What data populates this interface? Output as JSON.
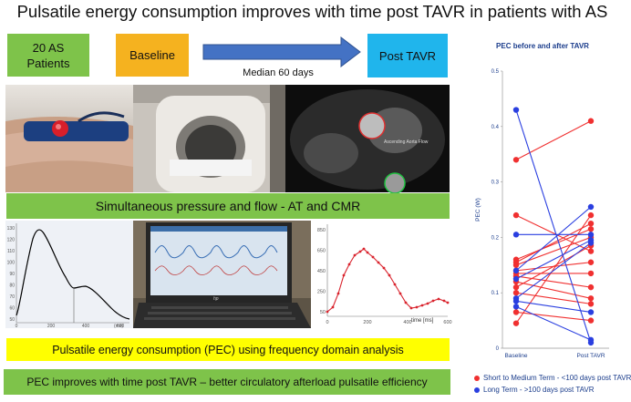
{
  "title": "Pulsatile energy consumption improves with time post TAVR in patients with AS",
  "flow": {
    "patients": "20 AS\nPatients",
    "baseline": "Baseline",
    "median": "Median 60 days",
    "post": "Post TAVR"
  },
  "mri_label": "Ascending Aorta Flow",
  "banner1": "Simultaneous pressure and flow  - AT and CMR",
  "banner2": "Pulsatile energy consumption (PEC) using frequency domain analysis",
  "banner3": "PEC improves with time post TAVR – better circulatory afterload pulsatile efficiency",
  "laptop_brand": "hp",
  "pressure_chart": {
    "y_ticks": [
      "130",
      "120",
      "110",
      "100",
      "90",
      "80",
      "70",
      "60",
      "50"
    ],
    "x_ticks": [
      "0",
      "200",
      "400",
      "600"
    ],
    "x_unit": "(ms)"
  },
  "flow_chart": {
    "y_ticks": [
      "850",
      "650",
      "450",
      "250",
      "50"
    ],
    "x_ticks": [
      "0",
      "200",
      "400",
      "600"
    ],
    "xlabel": "time [ms]"
  },
  "chart_data": {
    "type": "line",
    "title": "PEC before and after TAVR",
    "ylabel": "PEC (W)",
    "categories": [
      "Baseline",
      "Post TAVR"
    ],
    "ylim": [
      0,
      0.5
    ],
    "y_ticks": [
      "0",
      "0.1",
      "0.2",
      "0.3",
      "0.4",
      "0.5"
    ],
    "legend": [
      {
        "label": "Short to Medium Term - <100 days post TAVR",
        "color": "#f03030"
      },
      {
        "label": "Long Term - >100 days post TAVR",
        "color": "#2a3fe0"
      }
    ],
    "series": [
      {
        "group": "short",
        "values": [
          0.34,
          0.41
        ]
      },
      {
        "group": "short",
        "values": [
          0.24,
          0.175
        ]
      },
      {
        "group": "short",
        "values": [
          0.16,
          0.215
        ]
      },
      {
        "group": "short",
        "values": [
          0.155,
          0.225
        ]
      },
      {
        "group": "short",
        "values": [
          0.15,
          0.2
        ]
      },
      {
        "group": "short",
        "values": [
          0.14,
          0.155
        ]
      },
      {
        "group": "short",
        "values": [
          0.135,
          0.135
        ]
      },
      {
        "group": "short",
        "values": [
          0.13,
          0.11
        ]
      },
      {
        "group": "short",
        "values": [
          0.12,
          0.09
        ]
      },
      {
        "group": "short",
        "values": [
          0.11,
          0.185
        ]
      },
      {
        "group": "short",
        "values": [
          0.1,
          0.08
        ]
      },
      {
        "group": "short",
        "values": [
          0.065,
          0.05
        ]
      },
      {
        "group": "short",
        "values": [
          0.045,
          0.24
        ]
      },
      {
        "group": "long",
        "values": [
          0.43,
          0.01
        ]
      },
      {
        "group": "long",
        "values": [
          0.205,
          0.205
        ]
      },
      {
        "group": "long",
        "values": [
          0.14,
          0.255
        ]
      },
      {
        "group": "long",
        "values": [
          0.125,
          0.195
        ]
      },
      {
        "group": "long",
        "values": [
          0.09,
          0.19
        ]
      },
      {
        "group": "long",
        "values": [
          0.085,
          0.065
        ]
      },
      {
        "group": "long",
        "values": [
          0.075,
          0.015
        ]
      }
    ]
  }
}
